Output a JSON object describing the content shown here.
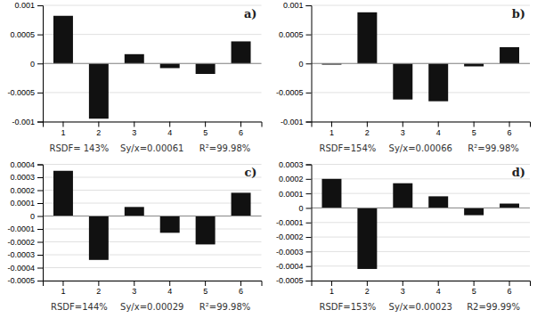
{
  "chart_data": [
    {
      "type": "bar",
      "title": "a)",
      "categories": [
        1,
        2,
        3,
        4,
        5,
        6
      ],
      "values": [
        0.00082,
        -0.00095,
        0.00016,
        -8e-05,
        -0.00018,
        0.00038
      ],
      "color": "#111111",
      "ylim": [
        -0.001,
        0.001
      ],
      "yticks": [
        -0.001,
        -0.0005,
        0,
        0.0005,
        0.001
      ],
      "grid": true,
      "annotations": [
        "RSDF= 143%",
        "Sy/x=0.00061",
        "R²=99.98%"
      ]
    },
    {
      "type": "bar",
      "title": "b)",
      "categories": [
        1,
        2,
        3,
        4,
        5,
        6
      ],
      "values": [
        -2e-05,
        0.00088,
        -0.00062,
        -0.00065,
        -5e-05,
        0.00028
      ],
      "color": "#111111",
      "ylim": [
        -0.001,
        0.001
      ],
      "yticks": [
        -0.001,
        -0.0005,
        0,
        0.0005,
        0.001
      ],
      "grid": true,
      "annotations": [
        "RSDF=154%",
        "Sy/x=0.00066",
        "R²=99.98%"
      ]
    },
    {
      "type": "bar",
      "title": "c)",
      "categories": [
        1,
        2,
        3,
        4,
        5,
        6
      ],
      "values": [
        0.00035,
        -0.00034,
        7e-05,
        -0.00013,
        -0.00022,
        0.00018
      ],
      "color": "#111111",
      "ylim": [
        -0.0005,
        0.0004
      ],
      "yticks": [
        -0.0005,
        -0.0004,
        -0.0003,
        -0.0002,
        -0.0001,
        0,
        0.0001,
        0.0002,
        0.0003,
        0.0004
      ],
      "grid": true,
      "annotations": [
        "RSDF=144%",
        "Sy/x=0.00029",
        "R²=99.98%"
      ]
    },
    {
      "type": "bar",
      "title": "d)",
      "categories": [
        1,
        2,
        3,
        4,
        5,
        6
      ],
      "values": [
        0.0002,
        -0.00042,
        0.00017,
        8e-05,
        -5e-05,
        3e-05
      ],
      "color": "#111111",
      "ylim": [
        -0.0005,
        0.0003
      ],
      "yticks": [
        -0.0005,
        -0.0004,
        -0.0003,
        -0.0002,
        -0.0001,
        0,
        0.0001,
        0.0002,
        0.0003
      ],
      "grid": true,
      "annotations": [
        "RSDF=153%",
        "Sy/x=0.00023",
        "R2=99.99%"
      ]
    }
  ]
}
